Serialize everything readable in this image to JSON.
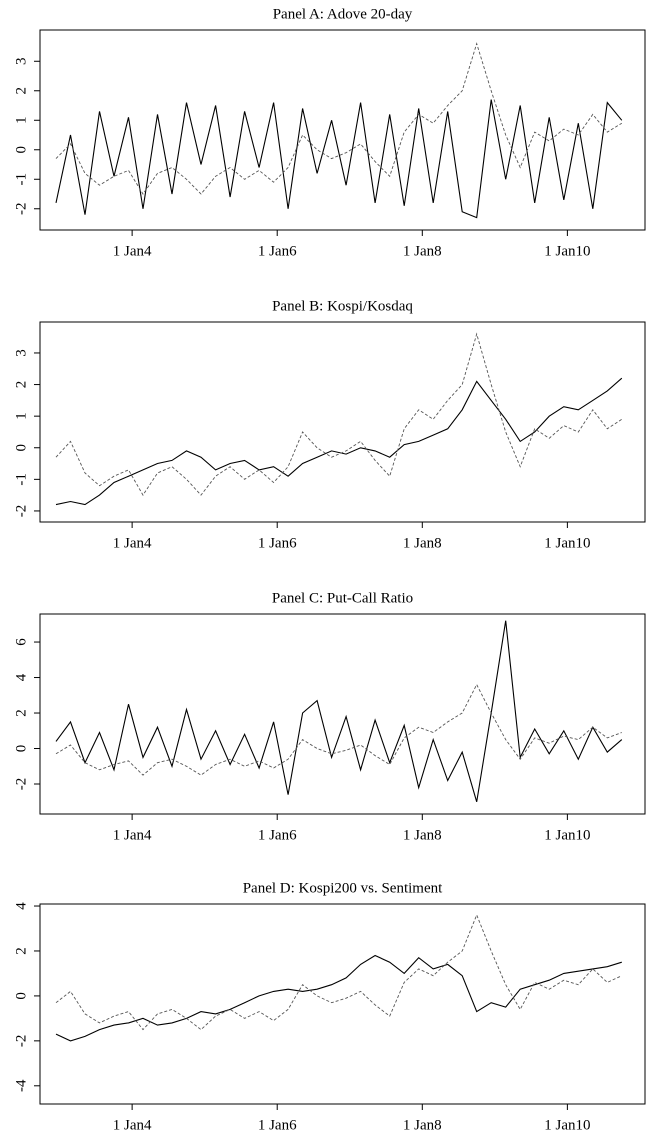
{
  "chart_data": [
    {
      "type": "line",
      "title": "Panel A: Adove 20-day",
      "x": [
        2.95,
        3.15,
        3.35,
        3.55,
        3.75,
        3.95,
        4.15,
        4.35,
        4.55,
        4.75,
        4.95,
        5.15,
        5.35,
        5.55,
        5.75,
        5.95,
        6.15,
        6.35,
        6.55,
        6.75,
        6.95,
        7.15,
        7.35,
        7.55,
        7.75,
        7.95,
        8.15,
        8.35,
        8.55,
        8.75,
        8.95,
        9.15,
        9.35,
        9.55,
        9.75,
        9.95,
        10.15,
        10.35,
        10.55,
        10.75
      ],
      "xlim": [
        2.73,
        11.07
      ],
      "xticks": [
        {
          "value": 4,
          "label": "1 Jan4"
        },
        {
          "value": 6,
          "label": "1 Jan6"
        },
        {
          "value": 8,
          "label": "1 Jan8"
        },
        {
          "value": 10,
          "label": "1 Jan10"
        }
      ],
      "ylim": [
        -2.72,
        4.06
      ],
      "yticks": [
        -2,
        -1,
        0,
        1,
        2,
        3
      ],
      "series": [
        {
          "color": "#000000",
          "dashed": false,
          "values": [
            -1.8,
            0.5,
            -2.2,
            1.3,
            -0.9,
            1.1,
            -2.0,
            1.2,
            -1.5,
            1.6,
            -0.5,
            1.5,
            -1.6,
            1.3,
            -0.6,
            1.6,
            -2.0,
            1.4,
            -0.8,
            1.0,
            -1.2,
            1.6,
            -1.8,
            1.2,
            -1.9,
            1.4,
            -1.8,
            1.3,
            -2.1,
            -2.3,
            1.7,
            -1.0,
            1.5,
            -1.8,
            1.1,
            -1.7,
            0.9,
            -2.0,
            1.6,
            1.0
          ]
        },
        {
          "color": "#555555",
          "dashed": true,
          "values": [
            -0.3,
            0.2,
            -0.8,
            -1.2,
            -0.9,
            -0.7,
            -1.5,
            -0.8,
            -0.6,
            -1.0,
            -1.5,
            -0.9,
            -0.6,
            -1.0,
            -0.7,
            -1.1,
            -0.6,
            0.5,
            0.0,
            -0.3,
            -0.1,
            0.2,
            -0.4,
            -0.9,
            0.6,
            1.2,
            0.9,
            1.5,
            2.0,
            3.6,
            2.0,
            0.5,
            -0.6,
            0.6,
            0.3,
            0.7,
            0.5,
            1.2,
            0.6,
            0.9
          ]
        }
      ]
    },
    {
      "type": "line",
      "title": "Panel B: Kospi/Kosdaq",
      "x": [
        2.95,
        3.15,
        3.35,
        3.55,
        3.75,
        3.95,
        4.15,
        4.35,
        4.55,
        4.75,
        4.95,
        5.15,
        5.35,
        5.55,
        5.75,
        5.95,
        6.15,
        6.35,
        6.55,
        6.75,
        6.95,
        7.15,
        7.35,
        7.55,
        7.75,
        7.95,
        8.15,
        8.35,
        8.55,
        8.75,
        8.95,
        9.15,
        9.35,
        9.55,
        9.75,
        9.95,
        10.15,
        10.35,
        10.55,
        10.75
      ],
      "xlim": [
        2.73,
        11.07
      ],
      "xticks": [
        {
          "value": 4,
          "label": "1 Jan4"
        },
        {
          "value": 6,
          "label": "1 Jan6"
        },
        {
          "value": 8,
          "label": "1 Jan8"
        },
        {
          "value": 10,
          "label": "1 Jan10"
        }
      ],
      "ylim": [
        -2.35,
        3.98
      ],
      "yticks": [
        -2,
        -1,
        0,
        1,
        2,
        3
      ],
      "series": [
        {
          "color": "#000000",
          "dashed": false,
          "values": [
            -1.8,
            -1.7,
            -1.8,
            -1.5,
            -1.1,
            -0.9,
            -0.7,
            -0.5,
            -0.4,
            -0.1,
            -0.3,
            -0.7,
            -0.5,
            -0.4,
            -0.7,
            -0.6,
            -0.9,
            -0.5,
            -0.3,
            -0.1,
            -0.2,
            0.0,
            -0.1,
            -0.3,
            0.1,
            0.2,
            0.4,
            0.6,
            1.2,
            2.1,
            1.5,
            0.9,
            0.2,
            0.5,
            1.0,
            1.3,
            1.2,
            1.5,
            1.8,
            2.2
          ]
        },
        {
          "color": "#555555",
          "dashed": true,
          "values": [
            -0.3,
            0.2,
            -0.8,
            -1.2,
            -0.9,
            -0.7,
            -1.5,
            -0.8,
            -0.6,
            -1.0,
            -1.5,
            -0.9,
            -0.6,
            -1.0,
            -0.7,
            -1.1,
            -0.6,
            0.5,
            0.0,
            -0.3,
            -0.1,
            0.2,
            -0.4,
            -0.9,
            0.6,
            1.2,
            0.9,
            1.5,
            2.0,
            3.6,
            2.0,
            0.5,
            -0.6,
            0.6,
            0.3,
            0.7,
            0.5,
            1.2,
            0.6,
            0.9
          ]
        }
      ]
    },
    {
      "type": "line",
      "title": "Panel C: Put-Call Ratio",
      "x": [
        2.95,
        3.15,
        3.35,
        3.55,
        3.75,
        3.95,
        4.15,
        4.35,
        4.55,
        4.75,
        4.95,
        5.15,
        5.35,
        5.55,
        5.75,
        5.95,
        6.15,
        6.35,
        6.55,
        6.75,
        6.95,
        7.15,
        7.35,
        7.55,
        7.75,
        7.95,
        8.15,
        8.35,
        8.55,
        8.75,
        8.95,
        9.15,
        9.35,
        9.55,
        9.75,
        9.95,
        10.15,
        10.35,
        10.55,
        10.75
      ],
      "xlim": [
        2.73,
        11.07
      ],
      "xticks": [
        {
          "value": 4,
          "label": "1 Jan4"
        },
        {
          "value": 6,
          "label": "1 Jan6"
        },
        {
          "value": 8,
          "label": "1 Jan8"
        },
        {
          "value": 10,
          "label": "1 Jan10"
        }
      ],
      "ylim": [
        -3.69,
        7.58
      ],
      "yticks": [
        -2,
        0,
        2,
        4,
        6
      ],
      "series": [
        {
          "color": "#000000",
          "dashed": false,
          "values": [
            0.4,
            1.5,
            -0.8,
            0.9,
            -1.2,
            2.5,
            -0.5,
            1.2,
            -1.0,
            2.2,
            -0.6,
            1.0,
            -0.9,
            0.8,
            -1.1,
            1.5,
            -2.6,
            2.0,
            2.7,
            -0.5,
            1.8,
            -1.2,
            1.6,
            -0.8,
            1.3,
            -2.2,
            0.5,
            -1.8,
            -0.2,
            -3.0,
            2.0,
            7.2,
            -0.5,
            1.1,
            -0.3,
            1.0,
            -0.6,
            1.2,
            -0.2,
            0.5
          ]
        },
        {
          "color": "#555555",
          "dashed": true,
          "values": [
            -0.3,
            0.2,
            -0.8,
            -1.2,
            -0.9,
            -0.7,
            -1.5,
            -0.8,
            -0.6,
            -1.0,
            -1.5,
            -0.9,
            -0.6,
            -1.0,
            -0.7,
            -1.1,
            -0.6,
            0.5,
            0.0,
            -0.3,
            -0.1,
            0.2,
            -0.4,
            -0.9,
            0.6,
            1.2,
            0.9,
            1.5,
            2.0,
            3.6,
            2.0,
            0.5,
            -0.6,
            0.6,
            0.3,
            0.7,
            0.5,
            1.2,
            0.6,
            0.9
          ]
        }
      ]
    },
    {
      "type": "line",
      "title": "Panel D: Kospi200 vs. Sentiment",
      "x": [
        2.95,
        3.15,
        3.35,
        3.55,
        3.75,
        3.95,
        4.15,
        4.35,
        4.55,
        4.75,
        4.95,
        5.15,
        5.35,
        5.55,
        5.75,
        5.95,
        6.15,
        6.35,
        6.55,
        6.75,
        6.95,
        7.15,
        7.35,
        7.55,
        7.75,
        7.95,
        8.15,
        8.35,
        8.55,
        8.75,
        8.95,
        9.15,
        9.35,
        9.55,
        9.75,
        9.95,
        10.15,
        10.35,
        10.55,
        10.75
      ],
      "xlim": [
        2.73,
        11.07
      ],
      "xticks": [
        {
          "value": 4,
          "label": "1 Jan4"
        },
        {
          "value": 6,
          "label": "1 Jan6"
        },
        {
          "value": 8,
          "label": "1 Jan8"
        },
        {
          "value": 10,
          "label": "1 Jan10"
        }
      ],
      "ylim": [
        -4.81,
        4.09
      ],
      "yticks": [
        -4,
        -2,
        0,
        2,
        4
      ],
      "series": [
        {
          "color": "#000000",
          "dashed": false,
          "values": [
            -1.7,
            -2.0,
            -1.8,
            -1.5,
            -1.3,
            -1.2,
            -1.0,
            -1.3,
            -1.2,
            -1.0,
            -0.7,
            -0.8,
            -0.6,
            -0.3,
            0.0,
            0.2,
            0.3,
            0.2,
            0.3,
            0.5,
            0.8,
            1.4,
            1.8,
            1.5,
            1.0,
            1.7,
            1.2,
            1.4,
            0.9,
            -0.7,
            -0.3,
            -0.5,
            0.3,
            0.5,
            0.7,
            1.0,
            1.1,
            1.2,
            1.3,
            1.5
          ]
        },
        {
          "color": "#555555",
          "dashed": true,
          "values": [
            -0.3,
            0.2,
            -0.8,
            -1.2,
            -0.9,
            -0.7,
            -1.5,
            -0.8,
            -0.6,
            -1.0,
            -1.5,
            -0.9,
            -0.6,
            -1.0,
            -0.7,
            -1.1,
            -0.6,
            0.5,
            0.0,
            -0.3,
            -0.1,
            0.2,
            -0.4,
            -0.9,
            0.6,
            1.2,
            0.9,
            1.5,
            2.0,
            3.6,
            2.0,
            0.5,
            -0.6,
            0.6,
            0.3,
            0.7,
            0.5,
            1.2,
            0.6,
            0.9
          ]
        }
      ]
    }
  ]
}
